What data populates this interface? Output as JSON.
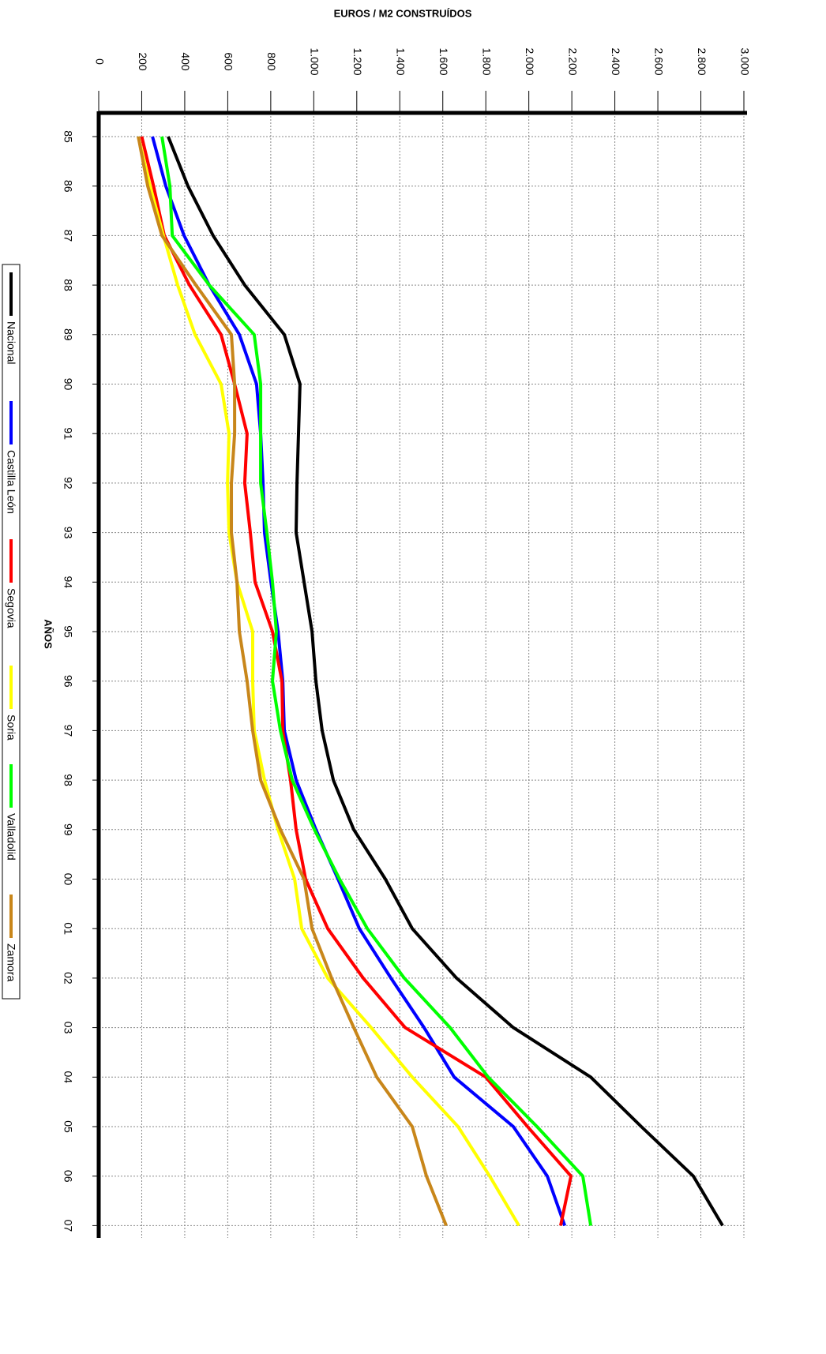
{
  "chart_data": {
    "type": "line",
    "title": "EUROS / M2 CONSTRUÍDOS",
    "x_label": "AÑOS",
    "categories": [
      "85",
      "86",
      "87",
      "88",
      "89",
      "90",
      "91",
      "92",
      "93",
      "94",
      "95",
      "96",
      "97",
      "98",
      "99",
      "00",
      "01",
      "02",
      "03",
      "04",
      "05",
      "06",
      "07"
    ],
    "ylim": [
      0,
      3000
    ],
    "yticks": [
      0,
      200,
      400,
      600,
      800,
      {
        "value": 1000,
        "label": "1.000"
      },
      {
        "value": 1200,
        "label": "1.200"
      },
      {
        "value": 1400,
        "label": "1.400"
      },
      {
        "value": 1600,
        "label": "1.600"
      },
      {
        "value": 1800,
        "label": "1.800"
      },
      {
        "value": 2000,
        "label": "2.000"
      },
      {
        "value": 2200,
        "label": "2.200"
      },
      {
        "value": 2400,
        "label": "2.400"
      },
      {
        "value": 2600,
        "label": "2.600"
      },
      {
        "value": 2800,
        "label": "2.800"
      },
      {
        "value": 3000,
        "label": "3.000"
      }
    ],
    "grid": true,
    "series": [
      {
        "name": "Nacional",
        "color": "#000000",
        "values": [
          323,
          415,
          532,
          679,
          863,
          936,
          929,
          922,
          918,
          955,
          992,
          1010,
          1039,
          1091,
          1186,
          1333,
          1458,
          1664,
          1928,
          2288,
          2523,
          2765,
          2901
        ]
      },
      {
        "name": "Castilla León",
        "color": "#0000ff",
        "values": [
          250,
          312,
          397,
          514,
          654,
          734,
          753,
          764,
          771,
          801,
          834,
          856,
          863,
          918,
          1010,
          1113,
          1212,
          1359,
          1513,
          1653,
          1928,
          2086,
          2167
        ]
      },
      {
        "name": "Segovia",
        "color": "#ff0000",
        "values": [
          200,
          255,
          305,
          422,
          569,
          632,
          690,
          679,
          705,
          727,
          808,
          852,
          856,
          892,
          918,
          962,
          1065,
          1230,
          1425,
          1800,
          1994,
          2196,
          2148
        ]
      },
      {
        "name": "Soria",
        "color": "#ffff00",
        "values": [
          184,
          239,
          301,
          367,
          448,
          569,
          606,
          599,
          606,
          643,
          716,
          716,
          723,
          771,
          834,
          911,
          944,
          1065,
          1267,
          1458,
          1671,
          1818,
          1954
        ]
      },
      {
        "name": "Valladolid",
        "color": "#00ff00",
        "values": [
          294,
          331,
          342,
          514,
          723,
          753,
          753,
          753,
          782,
          808,
          826,
          808,
          845,
          900,
          1003,
          1120,
          1249,
          1421,
          1634,
          1811,
          2038,
          2251,
          2288
        ]
      },
      {
        "name": "Zamora",
        "color": "#c8861a",
        "values": [
          184,
          228,
          294,
          452,
          617,
          632,
          632,
          617,
          617,
          643,
          654,
          690,
          716,
          753,
          845,
          955,
          992,
          1083,
          1186,
          1293,
          1458,
          1524,
          1616
        ]
      }
    ]
  }
}
